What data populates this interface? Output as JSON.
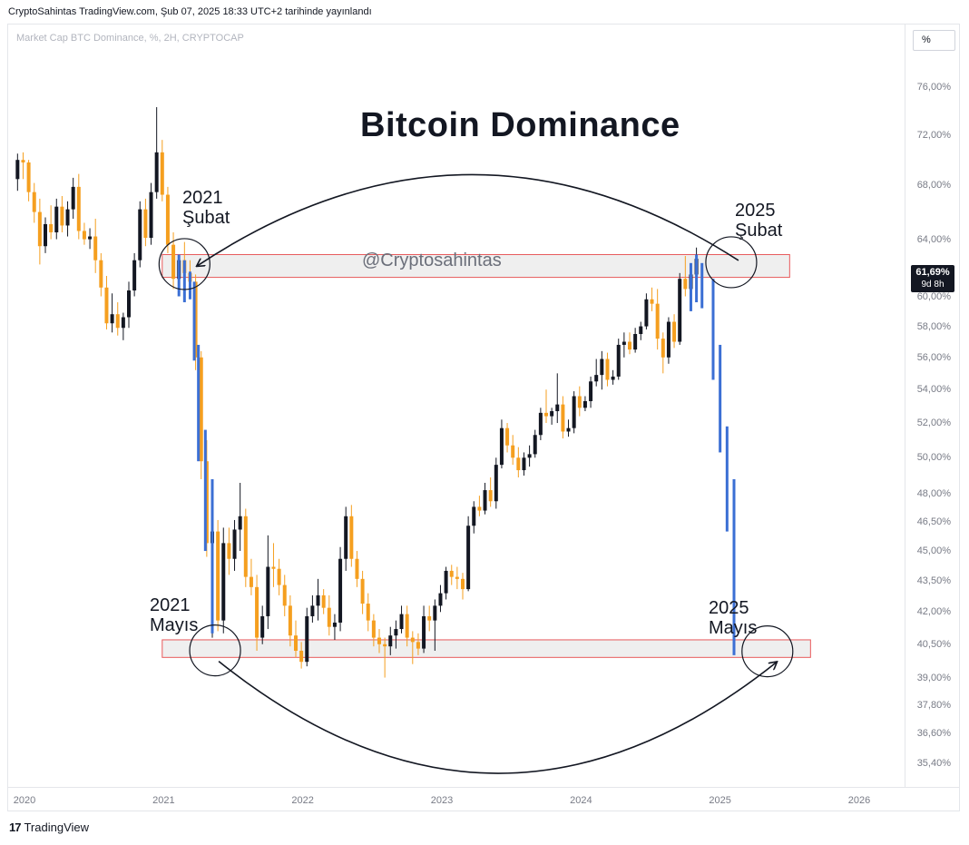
{
  "header": {
    "publish_info": "CryptoSahintas TradingView.com, Şub 07, 2025 18:33 UTC+2 tarihinde yayınlandı"
  },
  "legend": {
    "symbol_line": "Market Cap BTC Dominance, %, 2H, CRYPTOCAP"
  },
  "toolbar": {
    "percent_label": "%"
  },
  "footer": {
    "logo_glyph": "17",
    "brand": "TradingView"
  },
  "colors": {
    "bull": "#131722",
    "bear": "#f59f1f",
    "projection": "#3b6fd4",
    "zone_border": "#e8595a",
    "zone_fill": "#ececec"
  },
  "chart_data": {
    "type": "candlestick",
    "title": "Bitcoin Dominance",
    "watermark": "@Cryptosahintas",
    "y_axis": {
      "scale": "log",
      "ticks": [
        "76,00%",
        "72,00%",
        "68,00%",
        "64,00%",
        "60,00%",
        "58,00%",
        "56,00%",
        "54,00%",
        "52,00%",
        "50,00%",
        "48,00%",
        "46,50%",
        "45,00%",
        "43,50%",
        "42,00%",
        "40,50%",
        "39,00%",
        "37,80%",
        "36,60%",
        "35,40%"
      ],
      "tick_values": [
        76,
        72,
        68,
        64,
        60,
        58,
        56,
        54,
        52,
        50,
        48,
        46.5,
        45,
        43.5,
        42,
        40.5,
        39,
        37.8,
        36.6,
        35.4
      ],
      "range": [
        34.8,
        80
      ]
    },
    "x_axis": {
      "ticks": [
        "2020",
        "2021",
        "2022",
        "2023",
        "2024",
        "2025",
        "2026"
      ],
      "tick_values": [
        2020,
        2021,
        2022,
        2023,
        2024,
        2025,
        2026
      ],
      "range": [
        2019.9,
        2026.3
      ]
    },
    "last_price": {
      "value": "61,69%",
      "countdown": "9d 8h",
      "numeric": 61.69
    },
    "zones": [
      {
        "name": "resistance-zone",
        "x_start": 2020.99,
        "x_end": 2025.5,
        "y_low": 61.3,
        "y_high": 62.9
      },
      {
        "name": "support-zone",
        "x_start": 2020.99,
        "x_end": 2025.65,
        "y_low": 39.9,
        "y_high": 40.7
      }
    ],
    "annotations": [
      {
        "id": "2021-subat",
        "year": "2021",
        "month": "Şubat",
        "x": 2021.15,
        "y": 62.1
      },
      {
        "id": "2025-subat",
        "year": "2025",
        "month": "Şubat",
        "x": 2025.08,
        "y": 62.1
      },
      {
        "id": "2021-mayis",
        "year": "2021",
        "month": "Mayıs",
        "x": 2021.37,
        "y": 40.3
      },
      {
        "id": "2025-mayis",
        "year": "2025",
        "month": "Mayıs",
        "x": 2025.34,
        "y": 40.3
      }
    ],
    "candles": [
      {
        "t": 2019.95,
        "o": 68.5,
        "h": 70.5,
        "l": 67.6,
        "c": 70.0
      },
      {
        "t": 2019.99,
        "o": 70.0,
        "h": 70.6,
        "l": 68.5,
        "c": 69.8
      },
      {
        "t": 2020.03,
        "o": 69.8,
        "h": 70.0,
        "l": 66.8,
        "c": 67.5
      },
      {
        "t": 2020.07,
        "o": 67.5,
        "h": 68.2,
        "l": 65.2,
        "c": 66.0
      },
      {
        "t": 2020.11,
        "o": 66.0,
        "h": 67.0,
        "l": 62.2,
        "c": 63.5
      },
      {
        "t": 2020.15,
        "o": 63.5,
        "h": 65.6,
        "l": 63.0,
        "c": 65.1
      },
      {
        "t": 2020.19,
        "o": 65.1,
        "h": 66.5,
        "l": 64.0,
        "c": 64.5
      },
      {
        "t": 2020.23,
        "o": 64.5,
        "h": 67.0,
        "l": 64.0,
        "c": 66.4
      },
      {
        "t": 2020.27,
        "o": 66.4,
        "h": 67.2,
        "l": 64.5,
        "c": 65.0
      },
      {
        "t": 2020.31,
        "o": 65.0,
        "h": 66.8,
        "l": 64.2,
        "c": 66.2
      },
      {
        "t": 2020.35,
        "o": 66.2,
        "h": 68.6,
        "l": 65.5,
        "c": 67.9
      },
      {
        "t": 2020.39,
        "o": 67.9,
        "h": 68.9,
        "l": 64.0,
        "c": 64.6
      },
      {
        "t": 2020.43,
        "o": 64.6,
        "h": 65.2,
        "l": 63.6,
        "c": 64.0
      },
      {
        "t": 2020.47,
        "o": 64.0,
        "h": 64.8,
        "l": 63.3,
        "c": 64.2
      },
      {
        "t": 2020.51,
        "o": 64.2,
        "h": 65.5,
        "l": 61.6,
        "c": 62.5
      },
      {
        "t": 2020.55,
        "o": 62.5,
        "h": 63.0,
        "l": 60.0,
        "c": 60.6
      },
      {
        "t": 2020.59,
        "o": 60.6,
        "h": 61.4,
        "l": 57.8,
        "c": 58.2
      },
      {
        "t": 2020.63,
        "o": 58.2,
        "h": 60.2,
        "l": 57.6,
        "c": 58.8
      },
      {
        "t": 2020.67,
        "o": 58.8,
        "h": 59.6,
        "l": 57.4,
        "c": 57.9
      },
      {
        "t": 2020.71,
        "o": 57.9,
        "h": 58.9,
        "l": 57.1,
        "c": 58.6
      },
      {
        "t": 2020.75,
        "o": 58.6,
        "h": 61.0,
        "l": 57.9,
        "c": 60.4
      },
      {
        "t": 2020.79,
        "o": 60.4,
        "h": 63.0,
        "l": 60.0,
        "c": 62.5
      },
      {
        "t": 2020.83,
        "o": 62.5,
        "h": 66.8,
        "l": 62.0,
        "c": 66.2
      },
      {
        "t": 2020.87,
        "o": 66.2,
        "h": 67.0,
        "l": 63.5,
        "c": 64.1
      },
      {
        "t": 2020.91,
        "o": 64.1,
        "h": 68.2,
        "l": 63.6,
        "c": 67.5
      },
      {
        "t": 2020.95,
        "o": 67.5,
        "h": 74.3,
        "l": 67.0,
        "c": 70.6
      },
      {
        "t": 2020.99,
        "o": 70.6,
        "h": 71.6,
        "l": 66.8,
        "c": 67.3
      },
      {
        "t": 2021.03,
        "o": 67.3,
        "h": 67.9,
        "l": 63.0,
        "c": 63.6
      },
      {
        "t": 2021.07,
        "o": 63.6,
        "h": 64.5,
        "l": 60.5,
        "c": 61.2
      },
      {
        "t": 2021.11,
        "o": 61.2,
        "h": 62.8,
        "l": 60.0,
        "c": 62.5
      },
      {
        "t": 2021.15,
        "o": 62.5,
        "h": 63.8,
        "l": 61.0,
        "c": 61.6
      },
      {
        "t": 2021.19,
        "o": 61.6,
        "h": 62.5,
        "l": 60.2,
        "c": 61.0
      },
      {
        "t": 2021.23,
        "o": 61.0,
        "h": 61.5,
        "l": 55.2,
        "c": 56.0
      },
      {
        "t": 2021.27,
        "o": 56.0,
        "h": 56.4,
        "l": 48.8,
        "c": 49.8
      },
      {
        "t": 2021.31,
        "o": 49.8,
        "h": 51.0,
        "l": 44.7,
        "c": 45.4
      },
      {
        "t": 2021.35,
        "o": 45.4,
        "h": 47.5,
        "l": 40.8,
        "c": 46.0
      },
      {
        "t": 2021.39,
        "o": 46.0,
        "h": 46.6,
        "l": 41.1,
        "c": 41.6
      },
      {
        "t": 2021.43,
        "o": 41.6,
        "h": 46.2,
        "l": 41.0,
        "c": 45.4
      },
      {
        "t": 2021.47,
        "o": 45.4,
        "h": 46.2,
        "l": 43.8,
        "c": 44.6
      },
      {
        "t": 2021.51,
        "o": 44.6,
        "h": 46.6,
        "l": 44.0,
        "c": 46.1
      },
      {
        "t": 2021.55,
        "o": 46.1,
        "h": 48.6,
        "l": 45.0,
        "c": 46.8
      },
      {
        "t": 2021.59,
        "o": 46.8,
        "h": 47.2,
        "l": 43.2,
        "c": 43.7
      },
      {
        "t": 2021.63,
        "o": 43.7,
        "h": 44.6,
        "l": 42.8,
        "c": 43.2
      },
      {
        "t": 2021.67,
        "o": 43.2,
        "h": 43.8,
        "l": 40.2,
        "c": 40.8
      },
      {
        "t": 2021.71,
        "o": 40.8,
        "h": 42.3,
        "l": 40.5,
        "c": 41.8
      },
      {
        "t": 2021.75,
        "o": 41.8,
        "h": 45.8,
        "l": 41.2,
        "c": 44.2
      },
      {
        "t": 2021.79,
        "o": 44.2,
        "h": 45.4,
        "l": 43.2,
        "c": 44.1
      },
      {
        "t": 2021.83,
        "o": 44.1,
        "h": 44.6,
        "l": 42.8,
        "c": 43.3
      },
      {
        "t": 2021.87,
        "o": 43.3,
        "h": 43.8,
        "l": 41.8,
        "c": 42.3
      },
      {
        "t": 2021.91,
        "o": 42.3,
        "h": 42.8,
        "l": 40.4,
        "c": 40.9
      },
      {
        "t": 2021.95,
        "o": 40.9,
        "h": 41.6,
        "l": 39.9,
        "c": 40.2
      },
      {
        "t": 2021.99,
        "o": 40.2,
        "h": 40.6,
        "l": 39.4,
        "c": 39.7
      },
      {
        "t": 2022.03,
        "o": 39.7,
        "h": 42.2,
        "l": 39.5,
        "c": 41.8
      },
      {
        "t": 2022.07,
        "o": 41.8,
        "h": 42.8,
        "l": 41.5,
        "c": 42.3
      },
      {
        "t": 2022.11,
        "o": 42.3,
        "h": 43.6,
        "l": 41.6,
        "c": 42.8
      },
      {
        "t": 2022.15,
        "o": 42.8,
        "h": 43.1,
        "l": 41.9,
        "c": 42.2
      },
      {
        "t": 2022.19,
        "o": 42.2,
        "h": 42.8,
        "l": 40.9,
        "c": 41.3
      },
      {
        "t": 2022.23,
        "o": 41.3,
        "h": 41.9,
        "l": 40.7,
        "c": 41.5
      },
      {
        "t": 2022.27,
        "o": 41.5,
        "h": 45.2,
        "l": 41.1,
        "c": 44.6
      },
      {
        "t": 2022.31,
        "o": 44.6,
        "h": 47.3,
        "l": 44.0,
        "c": 46.8
      },
      {
        "t": 2022.35,
        "o": 46.8,
        "h": 47.4,
        "l": 44.2,
        "c": 44.6
      },
      {
        "t": 2022.39,
        "o": 44.6,
        "h": 45.0,
        "l": 43.2,
        "c": 43.6
      },
      {
        "t": 2022.43,
        "o": 43.6,
        "h": 44.0,
        "l": 41.9,
        "c": 42.4
      },
      {
        "t": 2022.47,
        "o": 42.4,
        "h": 42.9,
        "l": 41.1,
        "c": 41.6
      },
      {
        "t": 2022.51,
        "o": 41.6,
        "h": 41.9,
        "l": 40.4,
        "c": 40.8
      },
      {
        "t": 2022.55,
        "o": 40.8,
        "h": 41.2,
        "l": 40.1,
        "c": 40.5
      },
      {
        "t": 2022.59,
        "o": 40.5,
        "h": 40.8,
        "l": 39.0,
        "c": 40.4
      },
      {
        "t": 2022.63,
        "o": 40.4,
        "h": 41.3,
        "l": 40.0,
        "c": 40.9
      },
      {
        "t": 2022.67,
        "o": 40.9,
        "h": 41.6,
        "l": 40.3,
        "c": 41.2
      },
      {
        "t": 2022.71,
        "o": 41.2,
        "h": 42.3,
        "l": 41.0,
        "c": 41.9
      },
      {
        "t": 2022.75,
        "o": 41.9,
        "h": 42.3,
        "l": 40.4,
        "c": 40.8
      },
      {
        "t": 2022.79,
        "o": 40.8,
        "h": 41.1,
        "l": 39.6,
        "c": 40.6
      },
      {
        "t": 2022.83,
        "o": 40.6,
        "h": 41.0,
        "l": 40.0,
        "c": 40.3
      },
      {
        "t": 2022.87,
        "o": 40.3,
        "h": 42.3,
        "l": 40.1,
        "c": 41.8
      },
      {
        "t": 2022.91,
        "o": 41.8,
        "h": 42.3,
        "l": 41.1,
        "c": 41.6
      },
      {
        "t": 2022.95,
        "o": 41.6,
        "h": 42.6,
        "l": 40.2,
        "c": 42.3
      },
      {
        "t": 2022.99,
        "o": 42.3,
        "h": 43.3,
        "l": 42.0,
        "c": 42.9
      },
      {
        "t": 2023.03,
        "o": 42.9,
        "h": 44.2,
        "l": 42.6,
        "c": 44.0
      },
      {
        "t": 2023.07,
        "o": 44.0,
        "h": 44.3,
        "l": 43.3,
        "c": 43.7
      },
      {
        "t": 2023.11,
        "o": 43.7,
        "h": 44.2,
        "l": 43.1,
        "c": 43.6
      },
      {
        "t": 2023.15,
        "o": 43.6,
        "h": 43.9,
        "l": 42.6,
        "c": 43.1
      },
      {
        "t": 2023.19,
        "o": 43.1,
        "h": 46.8,
        "l": 43.0,
        "c": 46.3
      },
      {
        "t": 2023.23,
        "o": 46.3,
        "h": 47.6,
        "l": 45.9,
        "c": 47.3
      },
      {
        "t": 2023.27,
        "o": 47.3,
        "h": 47.9,
        "l": 46.8,
        "c": 47.1
      },
      {
        "t": 2023.31,
        "o": 47.1,
        "h": 48.6,
        "l": 46.9,
        "c": 48.2
      },
      {
        "t": 2023.35,
        "o": 48.2,
        "h": 48.9,
        "l": 47.3,
        "c": 47.6
      },
      {
        "t": 2023.39,
        "o": 47.6,
        "h": 50.0,
        "l": 47.2,
        "c": 49.6
      },
      {
        "t": 2023.43,
        "o": 49.6,
        "h": 52.2,
        "l": 49.4,
        "c": 51.7
      },
      {
        "t": 2023.47,
        "o": 51.7,
        "h": 52.0,
        "l": 50.3,
        "c": 50.7
      },
      {
        "t": 2023.51,
        "o": 50.7,
        "h": 51.3,
        "l": 49.6,
        "c": 50.0
      },
      {
        "t": 2023.55,
        "o": 50.0,
        "h": 50.6,
        "l": 48.9,
        "c": 49.3
      },
      {
        "t": 2023.59,
        "o": 49.3,
        "h": 50.3,
        "l": 49.0,
        "c": 50.0
      },
      {
        "t": 2023.63,
        "o": 50.0,
        "h": 50.7,
        "l": 49.5,
        "c": 50.2
      },
      {
        "t": 2023.67,
        "o": 50.2,
        "h": 51.6,
        "l": 50.0,
        "c": 51.3
      },
      {
        "t": 2023.71,
        "o": 51.3,
        "h": 52.9,
        "l": 51.0,
        "c": 52.6
      },
      {
        "t": 2023.75,
        "o": 52.6,
        "h": 54.0,
        "l": 52.0,
        "c": 52.4
      },
      {
        "t": 2023.79,
        "o": 52.4,
        "h": 52.9,
        "l": 51.9,
        "c": 52.7
      },
      {
        "t": 2023.83,
        "o": 52.7,
        "h": 55.0,
        "l": 52.0,
        "c": 53.1
      },
      {
        "t": 2023.87,
        "o": 53.1,
        "h": 53.6,
        "l": 51.1,
        "c": 51.5
      },
      {
        "t": 2023.91,
        "o": 51.5,
        "h": 52.2,
        "l": 51.2,
        "c": 51.7
      },
      {
        "t": 2023.95,
        "o": 51.7,
        "h": 53.9,
        "l": 51.4,
        "c": 53.6
      },
      {
        "t": 2023.99,
        "o": 53.6,
        "h": 54.2,
        "l": 52.4,
        "c": 52.9
      },
      {
        "t": 2024.03,
        "o": 52.9,
        "h": 53.6,
        "l": 52.7,
        "c": 53.3
      },
      {
        "t": 2024.07,
        "o": 53.3,
        "h": 54.8,
        "l": 52.9,
        "c": 54.5
      },
      {
        "t": 2024.11,
        "o": 54.5,
        "h": 55.9,
        "l": 54.2,
        "c": 54.9
      },
      {
        "t": 2024.15,
        "o": 54.9,
        "h": 56.4,
        "l": 54.0,
        "c": 55.9
      },
      {
        "t": 2024.19,
        "o": 55.9,
        "h": 56.3,
        "l": 54.2,
        "c": 54.6
      },
      {
        "t": 2024.23,
        "o": 54.6,
        "h": 55.2,
        "l": 54.3,
        "c": 54.8
      },
      {
        "t": 2024.27,
        "o": 54.8,
        "h": 57.2,
        "l": 54.6,
        "c": 56.8
      },
      {
        "t": 2024.31,
        "o": 56.8,
        "h": 57.6,
        "l": 56.0,
        "c": 57.0
      },
      {
        "t": 2024.35,
        "o": 57.0,
        "h": 57.6,
        "l": 56.2,
        "c": 56.5
      },
      {
        "t": 2024.39,
        "o": 56.5,
        "h": 57.9,
        "l": 56.3,
        "c": 57.5
      },
      {
        "t": 2024.43,
        "o": 57.5,
        "h": 58.3,
        "l": 57.1,
        "c": 58.0
      },
      {
        "t": 2024.47,
        "o": 58.0,
        "h": 60.2,
        "l": 57.8,
        "c": 59.8
      },
      {
        "t": 2024.51,
        "o": 59.8,
        "h": 60.6,
        "l": 59.0,
        "c": 59.5
      },
      {
        "t": 2024.55,
        "o": 59.5,
        "h": 60.5,
        "l": 56.5,
        "c": 57.2
      },
      {
        "t": 2024.59,
        "o": 57.2,
        "h": 57.6,
        "l": 55.0,
        "c": 56.0
      },
      {
        "t": 2024.63,
        "o": 56.0,
        "h": 58.6,
        "l": 55.6,
        "c": 58.3
      },
      {
        "t": 2024.67,
        "o": 58.3,
        "h": 58.8,
        "l": 56.6,
        "c": 57.0
      },
      {
        "t": 2024.71,
        "o": 57.0,
        "h": 61.6,
        "l": 56.8,
        "c": 61.2
      },
      {
        "t": 2024.75,
        "o": 61.2,
        "h": 62.8,
        "l": 60.0,
        "c": 60.5
      },
      {
        "t": 2024.79,
        "o": 60.5,
        "h": 61.8,
        "l": 59.7,
        "c": 61.5
      },
      {
        "t": 2024.83,
        "o": 61.5,
        "h": 63.4,
        "l": 61.0,
        "c": 62.6
      }
    ],
    "projection_bars": [
      {
        "t": 2021.11,
        "h": 62.9,
        "l": 60.0
      },
      {
        "t": 2021.15,
        "h": 62.5,
        "l": 59.6
      },
      {
        "t": 2021.19,
        "h": 61.7,
        "l": 59.8
      },
      {
        "t": 2021.22,
        "h": 61.0,
        "l": 55.8
      },
      {
        "t": 2021.25,
        "h": 56.8,
        "l": 49.8
      },
      {
        "t": 2021.3,
        "h": 51.6,
        "l": 45.0
      },
      {
        "t": 2021.35,
        "h": 48.8,
        "l": 41.0
      },
      {
        "t": 2024.79,
        "h": 62.3,
        "l": 59.0
      },
      {
        "t": 2024.83,
        "h": 62.9,
        "l": 59.6
      },
      {
        "t": 2024.87,
        "h": 62.3,
        "l": 59.2
      },
      {
        "t": 2024.95,
        "h": 61.2,
        "l": 54.6
      },
      {
        "t": 2025.0,
        "h": 56.8,
        "l": 50.3
      },
      {
        "t": 2025.05,
        "h": 51.8,
        "l": 46.0
      },
      {
        "t": 2025.1,
        "h": 48.8,
        "l": 40.0
      }
    ]
  }
}
